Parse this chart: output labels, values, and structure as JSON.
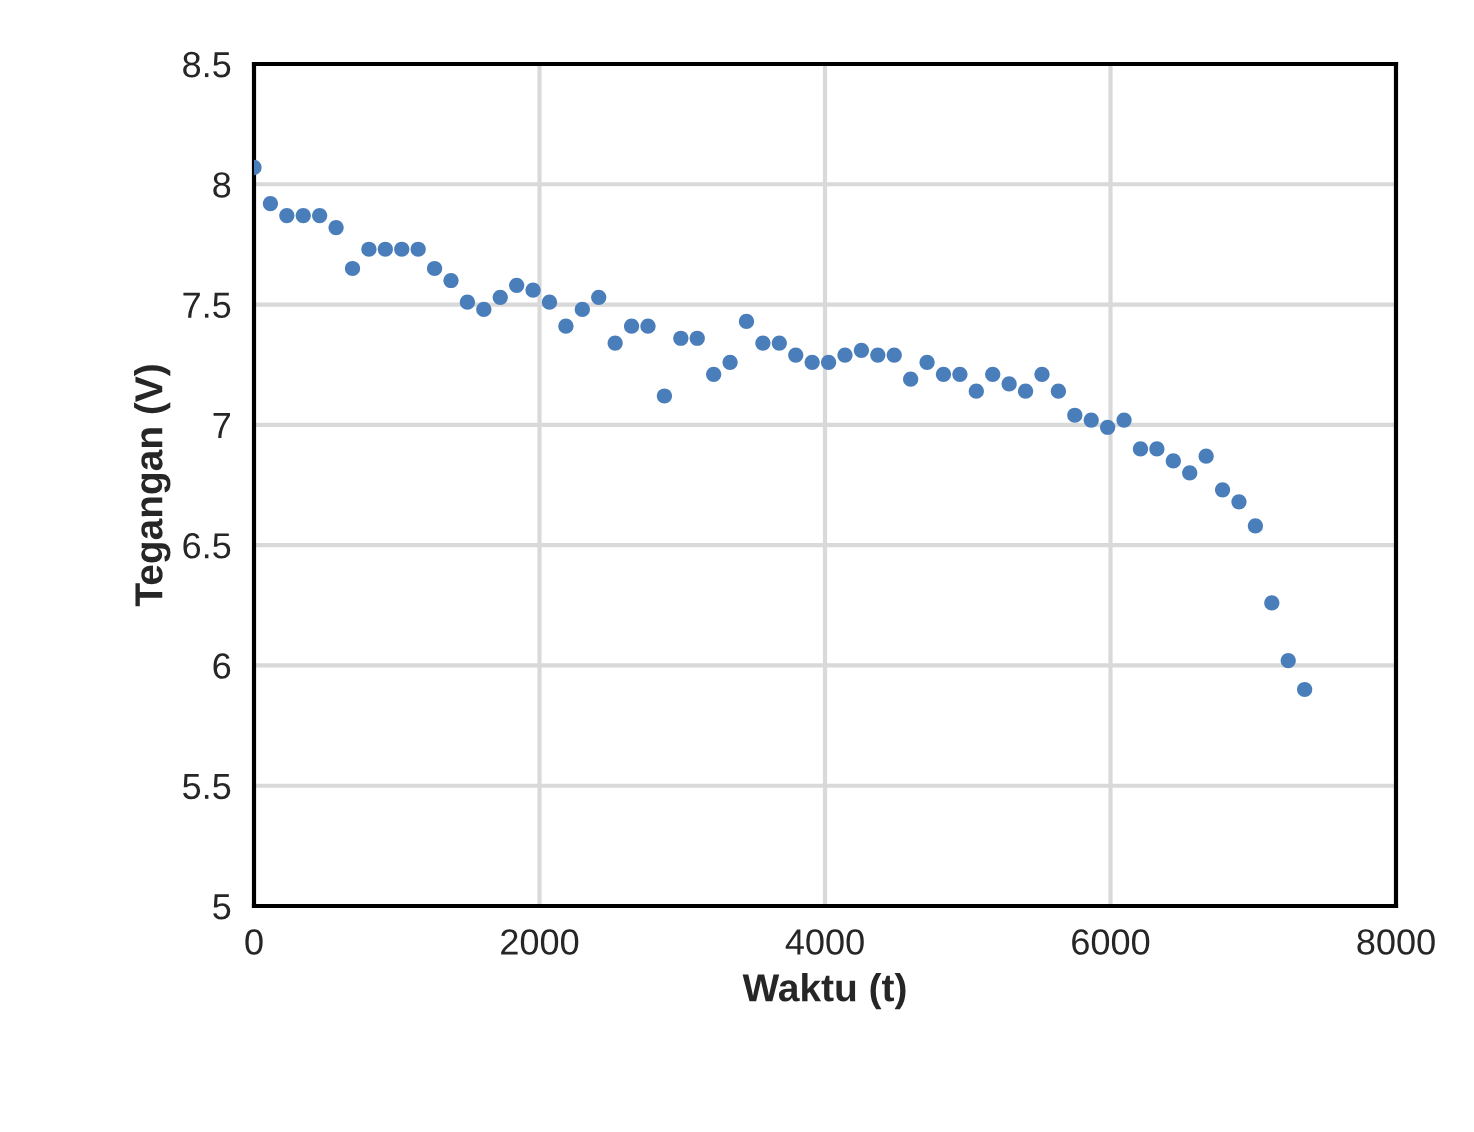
{
  "chart_data": {
    "type": "scatter",
    "xlabel": "Waktu (t)",
    "ylabel": "Tegangan (V)",
    "x": [
      0,
      115,
      230,
      345,
      460,
      575,
      690,
      805,
      920,
      1035,
      1150,
      1265,
      1380,
      1495,
      1610,
      1725,
      1840,
      1955,
      2070,
      2185,
      2300,
      2415,
      2530,
      2645,
      2760,
      2875,
      2990,
      3105,
      3220,
      3335,
      3450,
      3565,
      3680,
      3795,
      3910,
      4025,
      4140,
      4255,
      4370,
      4485,
      4600,
      4715,
      4830,
      4945,
      5060,
      5175,
      5290,
      5405,
      5520,
      5635,
      5750,
      5865,
      5980,
      6095,
      6210,
      6325,
      6440,
      6555,
      6670,
      6785,
      6900,
      7015,
      7130,
      7245,
      7360
    ],
    "series": [
      {
        "color": "#4a7ebb",
        "values": [
          8.07,
          7.92,
          7.87,
          7.87,
          7.87,
          7.82,
          7.65,
          7.73,
          7.73,
          7.73,
          7.73,
          7.65,
          7.6,
          7.51,
          7.48,
          7.53,
          7.58,
          7.56,
          7.51,
          7.41,
          7.48,
          7.53,
          7.34,
          7.41,
          7.41,
          7.12,
          7.36,
          7.36,
          7.21,
          7.26,
          7.43,
          7.34,
          7.34,
          7.29,
          7.26,
          7.26,
          7.29,
          7.31,
          7.29,
          7.29,
          7.19,
          7.26,
          7.21,
          7.21,
          7.14,
          7.21,
          7.17,
          7.14,
          7.21,
          7.14,
          7.04,
          7.02,
          6.99,
          7.02,
          6.9,
          6.9,
          6.85,
          6.8,
          6.87,
          6.73,
          6.68,
          6.58,
          6.26,
          6.02,
          5.9
        ]
      }
    ],
    "xlim": [
      0,
      8000
    ],
    "xticks": [
      0,
      2000,
      4000,
      6000,
      8000
    ],
    "ylim": [
      5,
      8.5
    ],
    "yticks": [
      5,
      5.5,
      6,
      6.5,
      7,
      7.5,
      8,
      8.5
    ],
    "grid": true,
    "marker": "circle",
    "legend": false
  }
}
